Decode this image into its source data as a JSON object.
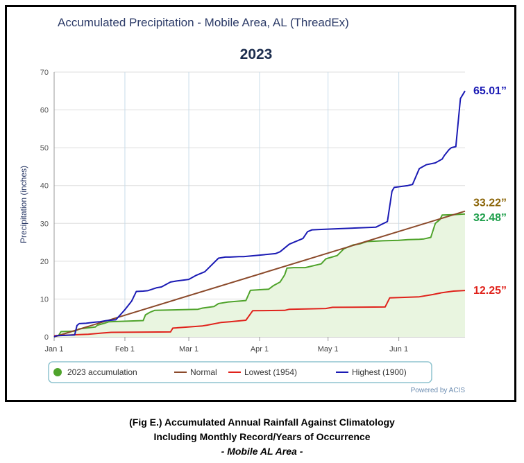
{
  "chart_data": {
    "type": "line",
    "title": "Accumulated Precipitation - Mobile Area, AL (ThreadEx)",
    "subtitle": "2023",
    "xlabel": "",
    "ylabel": "Precipitation (inches)",
    "ylim": [
      0,
      70
    ],
    "yticks": [
      "0",
      "10",
      "20",
      "30",
      "40",
      "50",
      "60",
      "70"
    ],
    "xlim": [
      "2023-01-01",
      "2023-06-30"
    ],
    "xticks": [
      {
        "label": "Jan 1",
        "date": "2023-01-01"
      },
      {
        "label": "Feb 1",
        "date": "2023-02-01"
      },
      {
        "label": "Mar 1",
        "date": "2023-03-01"
      },
      {
        "label": "Apr 1",
        "date": "2023-04-01"
      },
      {
        "label": "May 1",
        "date": "2023-05-01"
      },
      {
        "label": "Jun 1",
        "date": "2023-06-01"
      }
    ],
    "grid": true,
    "legend_position": "bottom",
    "credit": "Powered by ACIS",
    "series": [
      {
        "name": "2023 accumulation",
        "color": "#4fa32b",
        "fill": "#e9f5e0",
        "x": [
          "2023-01-01",
          "2023-01-03",
          "2023-01-04",
          "2023-01-10",
          "2023-01-12",
          "2023-01-19",
          "2023-01-20",
          "2023-01-23",
          "2023-01-25",
          "2023-02-09",
          "2023-02-10",
          "2023-02-12",
          "2023-02-14",
          "2023-03-05",
          "2023-03-07",
          "2023-03-12",
          "2023-03-14",
          "2023-03-18",
          "2023-03-26",
          "2023-03-28",
          "2023-04-05",
          "2023-04-07",
          "2023-04-10",
          "2023-04-12",
          "2023-04-13",
          "2023-04-16",
          "2023-04-21",
          "2023-04-28",
          "2023-04-30",
          "2023-05-01",
          "2023-05-05",
          "2023-05-08",
          "2023-05-12",
          "2023-05-15",
          "2023-05-18",
          "2023-05-22",
          "2023-05-25",
          "2023-06-01",
          "2023-06-05",
          "2023-06-10",
          "2023-06-12",
          "2023-06-15",
          "2023-06-17",
          "2023-06-19",
          "2023-06-20",
          "2023-06-25",
          "2023-06-30"
        ],
        "values": [
          0,
          0.4,
          1.4,
          1.5,
          2.1,
          2.6,
          3.1,
          3.6,
          4.0,
          4.3,
          5.8,
          6.5,
          7.0,
          7.3,
          7.6,
          8.0,
          8.8,
          9.2,
          9.6,
          12.3,
          12.6,
          13.5,
          14.5,
          16.4,
          18.2,
          18.3,
          18.3,
          19.3,
          20.6,
          20.8,
          21.5,
          23.3,
          24.3,
          24.6,
          25.2,
          25.3,
          25.4,
          25.5,
          25.7,
          25.8,
          25.9,
          26.3,
          30.0,
          31.0,
          32.2,
          32.3,
          32.48
        ]
      },
      {
        "name": "Normal",
        "color": "#8b4a2b",
        "x": [
          "2023-01-01",
          "2023-06-30"
        ],
        "values": [
          0,
          33.22
        ]
      },
      {
        "name": "Lowest (1954)",
        "color": "#e0221b",
        "x": [
          "2023-01-01",
          "2023-01-12",
          "2023-01-16",
          "2023-01-22",
          "2023-01-26",
          "2023-02-21",
          "2023-02-22",
          "2023-03-07",
          "2023-03-09",
          "2023-03-15",
          "2023-03-19",
          "2023-03-26",
          "2023-03-29",
          "2023-04-12",
          "2023-04-14",
          "2023-04-30",
          "2023-05-03",
          "2023-05-26",
          "2023-05-28",
          "2023-06-10",
          "2023-06-16",
          "2023-06-20",
          "2023-06-25",
          "2023-06-30"
        ],
        "values": [
          0.3,
          0.6,
          0.7,
          1.0,
          1.2,
          1.3,
          2.3,
          2.9,
          3.1,
          3.8,
          4.0,
          4.4,
          6.9,
          7.0,
          7.3,
          7.5,
          7.8,
          7.9,
          10.3,
          10.6,
          11.2,
          11.7,
          12.1,
          12.25
        ]
      },
      {
        "name": "Highest (1900)",
        "color": "#1a1ab4",
        "x": [
          "2023-01-01",
          "2023-01-02",
          "2023-01-10",
          "2023-01-11",
          "2023-01-12",
          "2023-01-15",
          "2023-01-19",
          "2023-01-21",
          "2023-01-24",
          "2023-01-28",
          "2023-01-31",
          "2023-02-01",
          "2023-02-04",
          "2023-02-06",
          "2023-02-09",
          "2023-02-11",
          "2023-02-15",
          "2023-02-17",
          "2023-02-21",
          "2023-02-24",
          "2023-03-01",
          "2023-03-04",
          "2023-03-08",
          "2023-03-14",
          "2023-03-17",
          "2023-03-19",
          "2023-03-23",
          "2023-03-25",
          "2023-04-08",
          "2023-04-10",
          "2023-04-14",
          "2023-04-16",
          "2023-04-20",
          "2023-04-22",
          "2023-04-24",
          "2023-04-28",
          "2023-05-22",
          "2023-05-27",
          "2023-05-29",
          "2023-05-30",
          "2023-06-05",
          "2023-06-07",
          "2023-06-10",
          "2023-06-13",
          "2023-06-17",
          "2023-06-20",
          "2023-06-21",
          "2023-06-23",
          "2023-06-24",
          "2023-06-26",
          "2023-06-28",
          "2023-06-30"
        ],
        "values": [
          0,
          0.3,
          0.5,
          3.0,
          3.5,
          3.6,
          3.9,
          4.0,
          4.3,
          4.5,
          6.5,
          7.2,
          9.5,
          12.0,
          12.1,
          12.2,
          13.0,
          13.2,
          14.5,
          14.8,
          15.2,
          16.2,
          17.2,
          20.8,
          21.1,
          21.1,
          21.2,
          21.2,
          22.0,
          22.5,
          24.5,
          25.0,
          26.0,
          27.8,
          28.3,
          28.4,
          29.0,
          30.5,
          38.5,
          39.5,
          40.0,
          40.3,
          44.5,
          45.5,
          46.0,
          47.0,
          48.0,
          49.5,
          50.0,
          50.3,
          63.0,
          65.01
        ]
      }
    ],
    "end_labels": [
      {
        "text": "65.01”",
        "value": 65.01,
        "color": "#1a1ab4"
      },
      {
        "text": "33.22”",
        "value": 33.22,
        "color": "#8b6508"
      },
      {
        "text": "32.48”",
        "value": 32.48,
        "color": "#1d9e4a"
      },
      {
        "text": "12.25”",
        "value": 12.25,
        "color": "#e0221b"
      }
    ]
  },
  "caption": {
    "line1": "(Fig E.) Accumulated Annual Rainfall Against  Climatology",
    "line2": "Including Monthly Record/Years of Occurrence",
    "line3": "- Mobile AL Area -"
  }
}
